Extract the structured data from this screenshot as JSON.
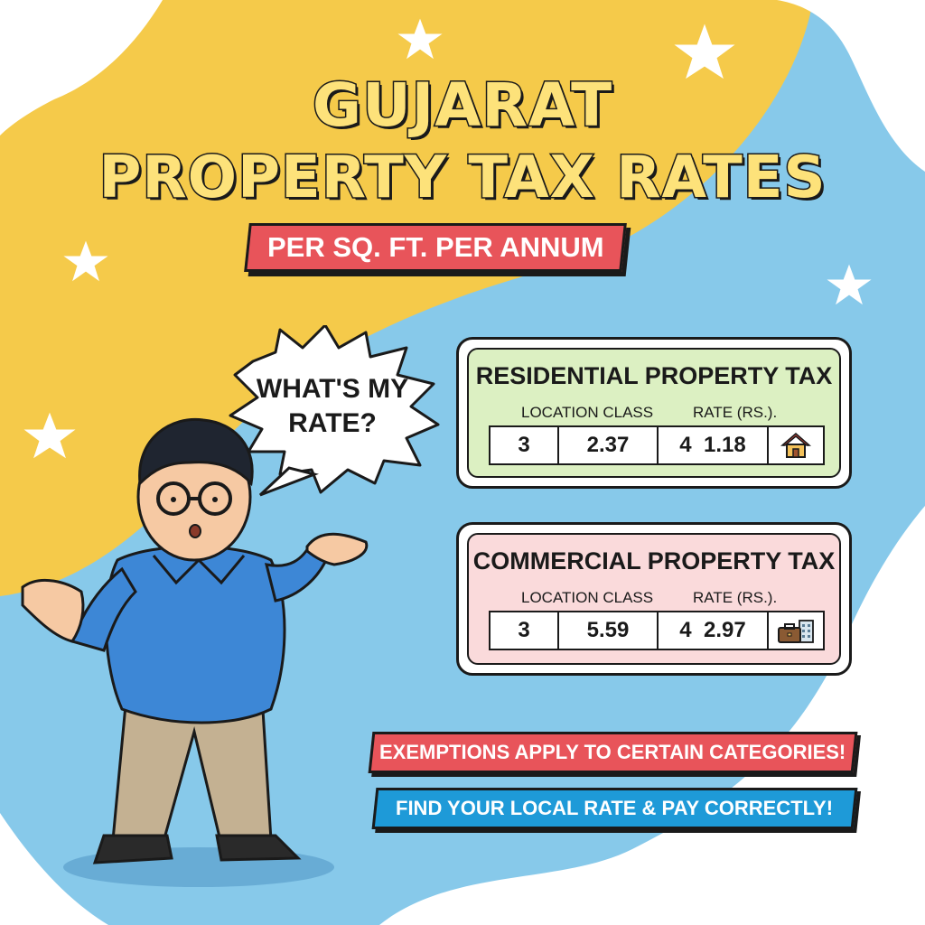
{
  "title": {
    "line1": "GUJARAT",
    "line2": "PROPERTY TAX RATES"
  },
  "subtitle": "PER SQ. FT. PER ANNUM",
  "speech_bubble": {
    "line1": "WHAT'S MY",
    "line2": "RATE?"
  },
  "residential": {
    "title": "RESIDENTIAL PROPERTY TAX",
    "col_location": "LOCATION CLASS",
    "col_rate": "RATE (RS.).",
    "cells": [
      "3",
      "2.37",
      "4  1.18"
    ],
    "icon": "house-icon"
  },
  "commercial": {
    "title": "COMMERCIAL PROPERTY TAX",
    "col_location": "LOCATION CLASS",
    "col_rate": "RATE (RS.).",
    "cells": [
      "3",
      "5.59",
      "4  2.97"
    ],
    "icon": "briefcase-building-icon"
  },
  "banners": {
    "exemptions": "EXEMPTIONS APPLY TO CERTAIN CATEGORIES!",
    "find_rate": "FIND YOUR LOCAL RATE & PAY CORRECTLY!"
  },
  "colors": {
    "yellow": "#f5ca4a",
    "sky": "#87c9ea",
    "red": "#e8545a",
    "blue": "#1e9ad8",
    "green_card": "#dcf0c2",
    "pink_card": "#fadadb"
  }
}
